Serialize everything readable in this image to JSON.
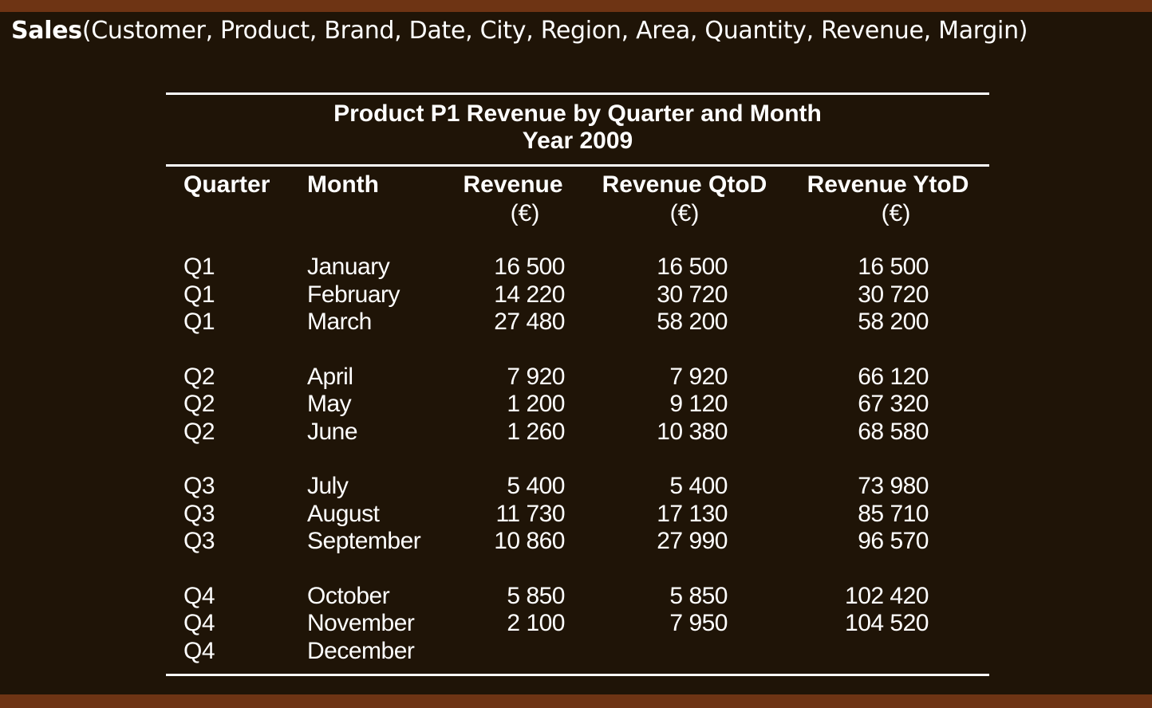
{
  "slide": {
    "relation_name": "Sales",
    "relation_attributes": "(Customer, Product, Brand, Date, City, Region, Area, Quantity, Revenue, Margin)"
  },
  "table": {
    "title": "Product P1 Revenue by Quarter and Month",
    "subtitle": "Year 2009",
    "headers": [
      {
        "label": "Quarter",
        "unit": ""
      },
      {
        "label": "Month",
        "unit": ""
      },
      {
        "label": "Revenue",
        "unit": "(€)"
      },
      {
        "label": "Revenue QtoD",
        "unit": "(€)"
      },
      {
        "label": "Revenue YtoD",
        "unit": "(€)"
      }
    ],
    "rows": [
      {
        "quarter": "Q1",
        "month": "January",
        "revenue": "16 500",
        "qtod": "16 500",
        "ytod": "16 500"
      },
      {
        "quarter": "Q1",
        "month": "February",
        "revenue": "14 220",
        "qtod": "30 720",
        "ytod": "30 720"
      },
      {
        "quarter": "Q1",
        "month": "March",
        "revenue": "27 480",
        "qtod": "58 200",
        "ytod": "58 200"
      },
      {
        "quarter": "Q2",
        "month": "April",
        "revenue": "7 920",
        "qtod": "7 920",
        "ytod": "66 120"
      },
      {
        "quarter": "Q2",
        "month": "May",
        "revenue": "1 200",
        "qtod": "9 120",
        "ytod": "67 320"
      },
      {
        "quarter": "Q2",
        "month": "June",
        "revenue": "1 260",
        "qtod": "10 380",
        "ytod": "68 580"
      },
      {
        "quarter": "Q3",
        "month": "July",
        "revenue": "5 400",
        "qtod": "5 400",
        "ytod": "73 980"
      },
      {
        "quarter": "Q3",
        "month": "August",
        "revenue": "11 730",
        "qtod": "17 130",
        "ytod": "85 710"
      },
      {
        "quarter": "Q3",
        "month": "September",
        "revenue": "10 860",
        "qtod": "27 990",
        "ytod": "96 570"
      },
      {
        "quarter": "Q4",
        "month": "October",
        "revenue": "5 850",
        "qtod": "5 850",
        "ytod": "102 420"
      },
      {
        "quarter": "Q4",
        "month": "November",
        "revenue": "2 100",
        "qtod": "7 950",
        "ytod": "104 520"
      },
      {
        "quarter": "Q4",
        "month": "December",
        "revenue": "",
        "qtod": "",
        "ytod": ""
      }
    ]
  }
}
